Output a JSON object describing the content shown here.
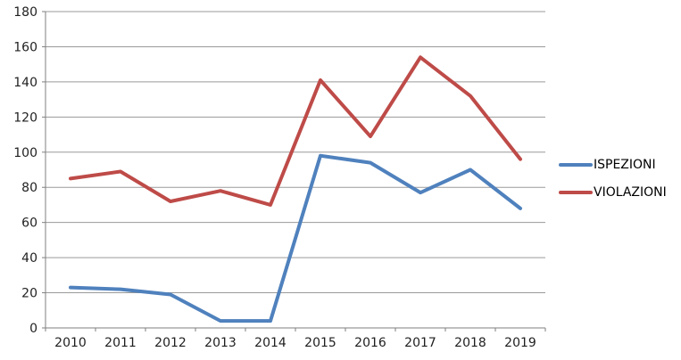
{
  "chart_data": {
    "type": "line",
    "title": "",
    "xlabel": "",
    "ylabel": "",
    "categories": [
      "2010",
      "2011",
      "2012",
      "2013",
      "2014",
      "2015",
      "2016",
      "2017",
      "2018",
      "2019"
    ],
    "series": [
      {
        "name": "ISPEZIONI",
        "color": "#4F81BD",
        "values": [
          23,
          22,
          19,
          4,
          4,
          98,
          94,
          77,
          90,
          68
        ]
      },
      {
        "name": "VIOLAZIONI",
        "color": "#BE4B48",
        "values": [
          85,
          89,
          72,
          78,
          70,
          141,
          109,
          154,
          132,
          96
        ]
      }
    ],
    "ylim": [
      0,
      180
    ],
    "ytick_step": 20,
    "yticks": [
      0,
      20,
      40,
      60,
      80,
      100,
      120,
      140,
      160,
      180
    ],
    "grid": "horizontal",
    "legend_position": "right"
  },
  "colors": {
    "gridline": "#9a9a9a",
    "axis": "#7f7f7f",
    "tick_text": "#1f1f1f",
    "background": "#ffffff"
  }
}
